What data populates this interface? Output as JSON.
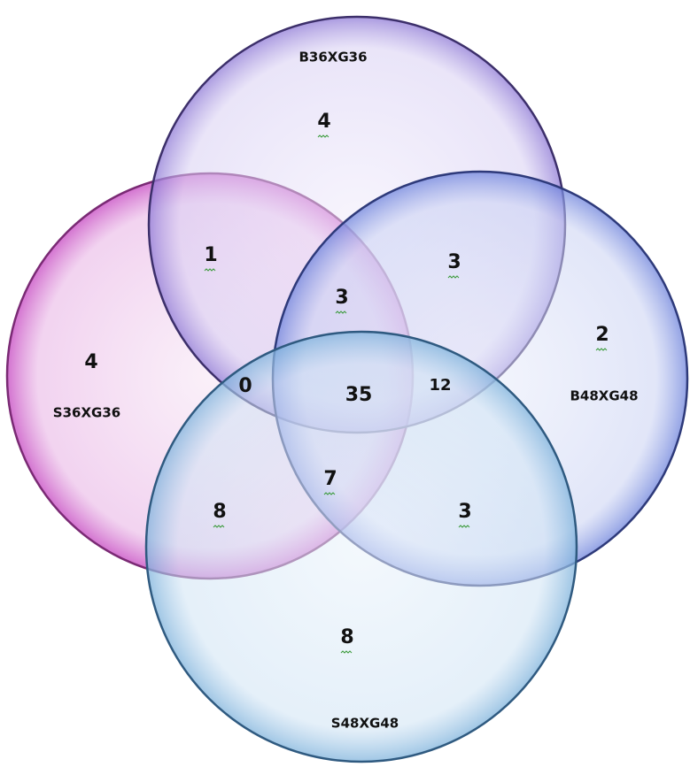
{
  "sets": [
    {
      "label": "S36XG36"
    },
    {
      "label": "B36XG36"
    },
    {
      "label": "B48XG48"
    },
    {
      "label": "S48XG48"
    }
  ],
  "regions": [
    {
      "value": 4
    },
    {
      "value": 1
    },
    {
      "value": 3
    },
    {
      "value": 3
    },
    {
      "value": 2
    },
    {
      "value": 4
    },
    {
      "value": 0
    },
    {
      "value": 35
    },
    {
      "value": 12
    },
    {
      "value": 7
    },
    {
      "value": 8
    },
    {
      "value": 3
    },
    {
      "value": 8
    }
  ]
}
